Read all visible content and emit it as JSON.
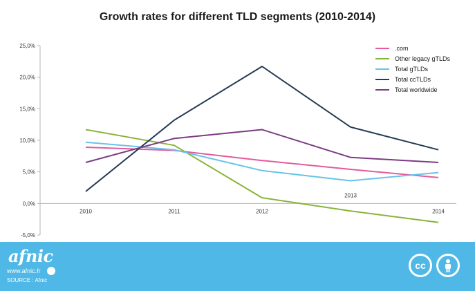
{
  "chart_data": {
    "type": "line",
    "title": "Growth rates for different TLD segments (2010-2014)",
    "categories": [
      "2010",
      "2011",
      "2012",
      "2013",
      "2014"
    ],
    "yticks": [
      "-5,0%",
      "0,0%",
      "5,0%",
      "10,0%",
      "15,0%",
      "20,0%",
      "25,0%"
    ],
    "ylim": [
      -5,
      25
    ],
    "legend_position": "top-right",
    "series": [
      {
        "name": ".com",
        "color": "#e45a9c",
        "values": [
          8.9,
          8.4,
          6.8,
          5.4,
          4.1
        ]
      },
      {
        "name": "Other legacy gTLDs",
        "color": "#88b437",
        "values": [
          11.7,
          9.2,
          0.9,
          -1.2,
          -3.0
        ]
      },
      {
        "name": "Total gTLDs",
        "color": "#66c3e8",
        "values": [
          9.7,
          8.5,
          5.2,
          3.6,
          4.9
        ]
      },
      {
        "name": "Total ccTLDs",
        "color": "#253a55",
        "values": [
          1.9,
          13.2,
          21.7,
          12.1,
          8.5
        ]
      },
      {
        "name": "Total worldwide",
        "color": "#7b3a82",
        "values": [
          6.5,
          10.3,
          11.7,
          7.3,
          6.5
        ]
      }
    ]
  },
  "footer": {
    "logo_text": "afnic",
    "website": "www.afnic.fr",
    "source": "SOURCE : Afnic",
    "cc_label": "cc",
    "bg_color": "#4fb8e6"
  }
}
